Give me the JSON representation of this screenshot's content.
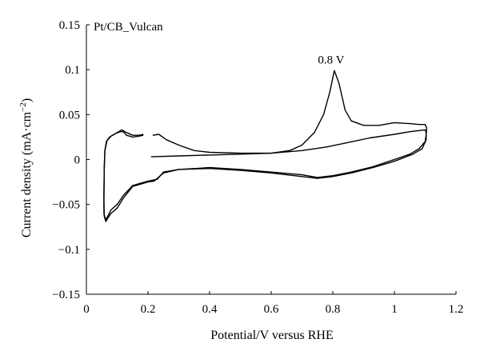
{
  "chart_data": {
    "type": "line",
    "title": "",
    "label": "Pt/CB_Vulcan",
    "xlabel": "Potential/V versus RHE",
    "ylabel": "Current density (mA·cm",
    "ylabel_superscript": "−2",
    "ylabel_close": ")",
    "xlim": [
      0,
      1.2
    ],
    "ylim": [
      -0.15,
      0.15
    ],
    "xticks": [
      0,
      0.2,
      0.4,
      0.6,
      0.8,
      1,
      1.2
    ],
    "xtick_labels": [
      "0",
      "0.2",
      "0.4",
      "0.6",
      "0.8",
      "1",
      "1.2"
    ],
    "yticks": [
      0.15,
      0.1,
      0.05,
      0,
      -0.05,
      -0.1,
      -0.15
    ],
    "ytick_labels": [
      "0.15",
      "0.1",
      "0.05",
      "0",
      "−0.05",
      "−0.1",
      "−0.15"
    ],
    "grid": false,
    "legend": "none",
    "annotations": [
      {
        "text": "0.8 V",
        "x": 0.805,
        "y": 0.099
      }
    ],
    "series": [
      {
        "points": [
          [
            0.21,
            0.003
          ],
          [
            0.3,
            0.004
          ],
          [
            0.4,
            0.005
          ],
          [
            0.5,
            0.006
          ],
          [
            0.6,
            0.007
          ],
          [
            0.7,
            0.01
          ],
          [
            0.78,
            0.014
          ],
          [
            0.85,
            0.019
          ],
          [
            0.92,
            0.024
          ],
          [
            1.0,
            0.028
          ],
          [
            1.05,
            0.031
          ],
          [
            1.1,
            0.033
          ],
          [
            1.103,
            0.03
          ],
          [
            1.103,
            0.022
          ],
          [
            1.09,
            0.012
          ],
          [
            1.06,
            0.006
          ],
          [
            1.0,
            -0.002
          ],
          [
            0.93,
            -0.009
          ],
          [
            0.86,
            -0.015
          ],
          [
            0.8,
            -0.019
          ],
          [
            0.75,
            -0.021
          ],
          [
            0.7,
            -0.019
          ],
          [
            0.6,
            -0.015
          ],
          [
            0.5,
            -0.012
          ],
          [
            0.4,
            -0.01
          ],
          [
            0.3,
            -0.011
          ],
          [
            0.25,
            -0.014
          ],
          [
            0.23,
            -0.022
          ],
          [
            0.2,
            -0.024
          ],
          [
            0.15,
            -0.029
          ],
          [
            0.12,
            -0.04
          ],
          [
            0.1,
            -0.05
          ],
          [
            0.08,
            -0.056
          ],
          [
            0.07,
            -0.063
          ],
          [
            0.062,
            -0.067
          ],
          [
            0.057,
            -0.06
          ],
          [
            0.057,
            -0.04
          ],
          [
            0.058,
            -0.01
          ],
          [
            0.06,
            0.01
          ],
          [
            0.065,
            0.02
          ],
          [
            0.075,
            0.025
          ],
          [
            0.09,
            0.028
          ],
          [
            0.105,
            0.031
          ],
          [
            0.115,
            0.033
          ],
          [
            0.13,
            0.03
          ],
          [
            0.15,
            0.027
          ],
          [
            0.17,
            0.027
          ],
          [
            0.185,
            0.028
          ]
        ]
      },
      {
        "points": [
          [
            0.215,
            0.027
          ],
          [
            0.235,
            0.028
          ],
          [
            0.26,
            0.022
          ],
          [
            0.3,
            0.016
          ],
          [
            0.35,
            0.01
          ],
          [
            0.4,
            0.008
          ],
          [
            0.5,
            0.007
          ],
          [
            0.6,
            0.007
          ],
          [
            0.66,
            0.01
          ],
          [
            0.7,
            0.016
          ],
          [
            0.74,
            0.03
          ],
          [
            0.77,
            0.05
          ],
          [
            0.79,
            0.075
          ],
          [
            0.805,
            0.099
          ],
          [
            0.82,
            0.085
          ],
          [
            0.84,
            0.055
          ],
          [
            0.86,
            0.043
          ],
          [
            0.9,
            0.038
          ],
          [
            0.95,
            0.038
          ],
          [
            1.0,
            0.041
          ],
          [
            1.05,
            0.04
          ],
          [
            1.08,
            0.039
          ],
          [
            1.1,
            0.039
          ],
          [
            1.105,
            0.035
          ],
          [
            1.103,
            0.028
          ],
          [
            1.1,
            0.02
          ],
          [
            1.08,
            0.012
          ],
          [
            1.05,
            0.006
          ],
          [
            1.0,
            0.0
          ],
          [
            0.93,
            -0.008
          ],
          [
            0.86,
            -0.014
          ],
          [
            0.8,
            -0.018
          ],
          [
            0.75,
            -0.02
          ],
          [
            0.7,
            -0.017
          ],
          [
            0.6,
            -0.014
          ],
          [
            0.5,
            -0.011
          ],
          [
            0.4,
            -0.009
          ],
          [
            0.3,
            -0.011
          ],
          [
            0.25,
            -0.015
          ],
          [
            0.22,
            -0.024
          ],
          [
            0.2,
            -0.025
          ],
          [
            0.15,
            -0.03
          ],
          [
            0.12,
            -0.043
          ],
          [
            0.1,
            -0.054
          ],
          [
            0.08,
            -0.06
          ],
          [
            0.07,
            -0.065
          ],
          [
            0.063,
            -0.069
          ],
          [
            0.058,
            -0.063
          ],
          [
            0.057,
            -0.045
          ],
          [
            0.058,
            -0.01
          ],
          [
            0.06,
            0.01
          ],
          [
            0.067,
            0.021
          ],
          [
            0.08,
            0.026
          ],
          [
            0.095,
            0.029
          ],
          [
            0.11,
            0.031
          ],
          [
            0.12,
            0.031
          ],
          [
            0.13,
            0.027
          ],
          [
            0.15,
            0.025
          ],
          [
            0.17,
            0.026
          ],
          [
            0.185,
            0.027
          ]
        ]
      }
    ]
  }
}
